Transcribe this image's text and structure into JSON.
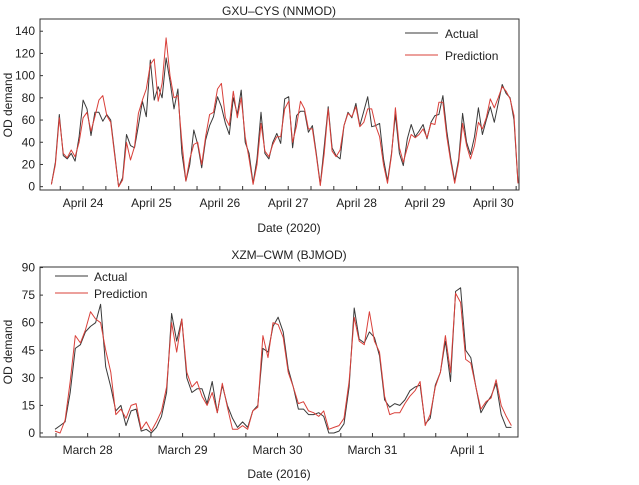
{
  "chart_data": [
    {
      "type": "line",
      "title": "GXU–CYS (NNMOD)",
      "xlabel": "Date (2020)",
      "ylabel": "OD demand",
      "xlim": [
        23.37,
        30.375
      ],
      "ylim": [
        -3,
        151
      ],
      "yticks": [
        0,
        20,
        40,
        60,
        80,
        100,
        120,
        140
      ],
      "xticks": [
        {
          "x": 24,
          "label": "April 24"
        },
        {
          "x": 25,
          "label": "April 25"
        },
        {
          "x": 26,
          "label": "April 26"
        },
        {
          "x": 27,
          "label": "April 27"
        },
        {
          "x": 28,
          "label": "April 28"
        },
        {
          "x": 29,
          "label": "April 29"
        },
        {
          "x": 30,
          "label": "April 30"
        }
      ],
      "x_start": 23.537,
      "x_end": 30.36,
      "legend": "top-right",
      "grid": false,
      "series": [
        {
          "name": "Actual",
          "color": "#3a3a3a",
          "values": [
            2,
            22,
            65,
            28,
            25,
            30,
            23,
            45,
            78,
            70,
            46,
            67,
            67,
            59,
            65,
            60,
            30,
            0,
            8,
            47,
            37,
            35,
            55,
            77,
            63,
            114,
            78,
            90,
            80,
            116,
            95,
            70,
            88,
            30,
            5,
            20,
            51,
            38,
            17,
            42,
            55,
            63,
            81,
            72,
            57,
            47,
            80,
            65,
            87,
            40,
            30,
            3,
            25,
            67,
            30,
            25,
            40,
            48,
            39,
            79,
            81,
            35,
            64,
            68,
            68,
            49,
            55,
            30,
            2,
            36,
            72,
            35,
            28,
            25,
            55,
            67,
            62,
            75,
            55,
            68,
            81,
            54,
            55,
            57,
            25,
            5,
            30,
            65,
            30,
            19,
            43,
            56,
            45,
            50,
            56,
            43,
            58,
            64,
            65,
            82,
            50,
            25,
            5,
            25,
            66,
            40,
            29,
            45,
            71,
            47,
            60,
            72,
            58,
            75,
            92,
            84,
            80,
            60,
            3
          ]
        },
        {
          "name": "Prediction",
          "color": "#d9403a",
          "values": [
            2,
            20,
            62,
            30,
            26,
            33,
            27,
            40,
            62,
            67,
            50,
            63,
            78,
            82,
            64,
            58,
            28,
            0,
            6,
            40,
            24,
            36,
            66,
            78,
            88,
            110,
            115,
            77,
            93,
            134,
            100,
            80,
            82,
            40,
            5,
            25,
            38,
            40,
            20,
            45,
            65,
            67,
            88,
            93,
            62,
            55,
            86,
            62,
            80,
            45,
            25,
            2,
            20,
            57,
            32,
            27,
            38,
            45,
            45,
            70,
            77,
            40,
            55,
            77,
            70,
            52,
            52,
            28,
            1,
            30,
            70,
            32,
            27,
            33,
            55,
            66,
            63,
            72,
            54,
            58,
            70,
            70,
            55,
            45,
            20,
            3,
            28,
            71,
            35,
            22,
            35,
            47,
            44,
            47,
            52,
            44,
            57,
            56,
            76,
            76,
            45,
            22,
            3,
            22,
            57,
            37,
            25,
            37,
            58,
            52,
            62,
            79,
            71,
            80,
            90,
            86,
            79,
            64,
            3
          ]
        }
      ]
    },
    {
      "type": "line",
      "title": "XZM–CWM (BJMOD)",
      "xlabel": "Date (2016)",
      "ylabel": "OD demand",
      "xlim": [
        -0.502,
        4.533
      ],
      "ylim": [
        -2.2,
        90.3
      ],
      "yticks": [
        0,
        15,
        30,
        45,
        60,
        75,
        90
      ],
      "xticks": [
        {
          "x": 0,
          "label": "March 28"
        },
        {
          "x": 1,
          "label": "March 29"
        },
        {
          "x": 2,
          "label": "March 30"
        },
        {
          "x": 3,
          "label": "March 31"
        },
        {
          "x": 4,
          "label": "April 1"
        }
      ],
      "x_start": -0.344,
      "x_end": 4.463,
      "legend": "top-left",
      "grid": false,
      "series": [
        {
          "name": "Actual",
          "color": "#3a3a3a",
          "values": [
            2,
            4,
            6,
            22,
            46,
            48,
            55,
            58,
            60,
            70,
            36,
            25,
            12,
            15,
            4,
            12,
            13,
            1,
            2,
            0,
            3,
            9,
            22,
            65,
            50,
            62,
            30,
            22,
            24,
            24,
            16,
            28,
            11,
            26,
            15,
            8,
            3,
            6,
            3,
            12,
            15,
            46,
            44,
            58,
            63,
            55,
            35,
            25,
            13,
            13,
            10,
            10,
            11,
            9,
            0,
            0,
            1,
            5,
            25,
            68,
            51,
            49,
            55,
            52,
            42,
            18,
            14,
            16,
            15,
            18,
            23,
            25,
            26,
            5,
            8,
            26,
            33,
            50,
            28,
            77,
            79,
            45,
            41,
            25,
            11,
            16,
            20,
            27,
            10,
            3,
            3
          ]
        },
        {
          "name": "Prediction",
          "color": "#d9403a",
          "values": [
            1,
            0,
            7,
            28,
            53,
            49,
            56,
            66,
            62,
            60,
            45,
            33,
            10,
            13,
            8,
            15,
            16,
            2,
            6,
            1,
            6,
            12,
            25,
            60,
            44,
            62,
            33,
            25,
            28,
            20,
            15,
            22,
            11,
            27,
            14,
            2,
            2,
            4,
            2,
            12,
            14,
            53,
            41,
            60,
            59,
            52,
            33,
            25,
            16,
            17,
            12,
            11,
            9,
            12,
            2,
            3,
            4,
            8,
            28,
            63,
            50,
            48,
            66,
            50,
            44,
            20,
            10,
            11,
            11,
            16,
            20,
            23,
            28,
            4,
            10,
            25,
            33,
            53,
            33,
            76,
            71,
            40,
            38,
            25,
            13,
            17,
            19,
            29,
            15,
            9,
            4
          ]
        }
      ]
    }
  ]
}
